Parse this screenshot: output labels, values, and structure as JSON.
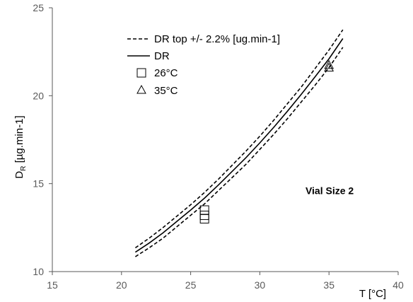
{
  "chart_data": {
    "type": "scatter",
    "title": "",
    "xlabel": "T [°C]",
    "ylabel_main": "D",
    "ylabel_sub": "R",
    "ylabel_rest": " [µg.min-1]",
    "xlim": [
      15,
      40
    ],
    "ylim": [
      10,
      25
    ],
    "xticks": [
      15,
      20,
      25,
      30,
      35,
      40
    ],
    "yticks": [
      10,
      15,
      20,
      25
    ],
    "grid": false,
    "legend_position": "top-left",
    "curve_formula_note": "",
    "series": [
      {
        "name": "DR top +/- 2.2% [ug.min-1]",
        "style": "dashed",
        "x": [
          21,
          22,
          23,
          24,
          25,
          26,
          27,
          28,
          29,
          30,
          31,
          32,
          33,
          34,
          35,
          36
        ],
        "y_upper": [
          11.35,
          11.9,
          12.5,
          13.15,
          13.8,
          14.5,
          15.25,
          16.05,
          16.85,
          17.7,
          18.6,
          19.55,
          20.5,
          21.55,
          22.6,
          23.75
        ],
        "y_lower": [
          10.85,
          11.35,
          11.9,
          12.55,
          13.2,
          13.85,
          14.6,
          15.35,
          16.1,
          16.95,
          17.8,
          18.7,
          19.65,
          20.6,
          21.6,
          22.75
        ]
      },
      {
        "name": "DR",
        "style": "solid",
        "x": [
          21,
          22,
          23,
          24,
          25,
          26,
          27,
          28,
          29,
          30,
          31,
          32,
          33,
          34,
          35,
          36
        ],
        "y": [
          11.1,
          11.62,
          12.2,
          12.85,
          13.5,
          14.18,
          14.92,
          15.7,
          16.48,
          17.32,
          18.2,
          19.12,
          20.08,
          21.08,
          22.1,
          23.25
        ]
      },
      {
        "name": "26°C",
        "marker": "square",
        "x": [
          26,
          26,
          26
        ],
        "y": [
          13.0,
          13.2,
          13.5
        ]
      },
      {
        "name": "35°C",
        "marker": "triangle",
        "x": [
          35,
          35
        ],
        "y": [
          21.6,
          21.75
        ]
      }
    ],
    "annotations": [
      {
        "text": "Vial Size 2",
        "x": 33.3,
        "y": 14.4
      }
    ]
  },
  "colors": {
    "line": "#000000",
    "axis": "#595959",
    "background": "#ffffff"
  }
}
